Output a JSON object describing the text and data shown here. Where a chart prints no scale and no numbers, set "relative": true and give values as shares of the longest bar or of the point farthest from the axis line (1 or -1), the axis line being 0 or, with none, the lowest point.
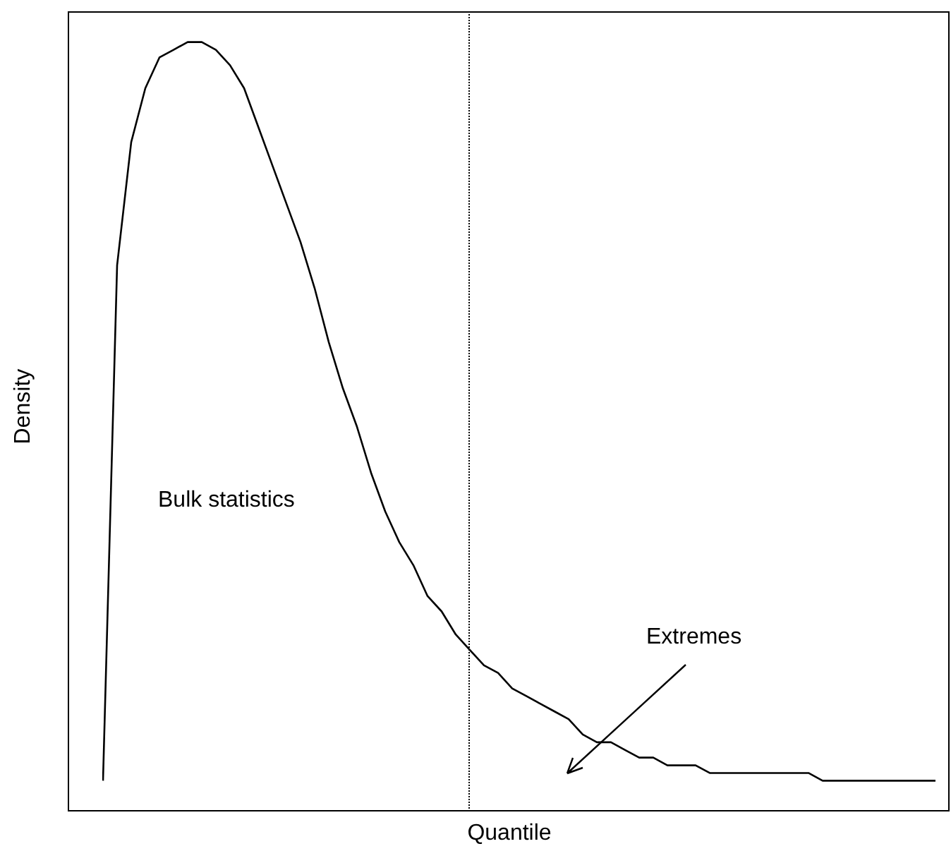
{
  "chart_data": {
    "type": "line",
    "relative": true,
    "xlabel": "Quantile",
    "ylabel": "Density",
    "legend": false,
    "marker": "none",
    "line_style": "solid",
    "categories": [
      null,
      null,
      null,
      null,
      null,
      null,
      null,
      null,
      null,
      null,
      null,
      null,
      null,
      null,
      null,
      null,
      null,
      null,
      null,
      null,
      null,
      null,
      null,
      null,
      null,
      null,
      null,
      null,
      null,
      null,
      null,
      null,
      null,
      null,
      null,
      null,
      null,
      null,
      null,
      null,
      null,
      null,
      null,
      null,
      null,
      null,
      null,
      null,
      null,
      null,
      null,
      null,
      null,
      null,
      null,
      null,
      null,
      null,
      null,
      null
    ],
    "series": [
      {
        "color": "#000000",
        "values": [
          0.04,
          0.71,
          0.87,
          0.94,
          0.98,
          0.99,
          1,
          1,
          0.99,
          0.97,
          0.94,
          0.89,
          0.84,
          0.79,
          0.74,
          0.68,
          0.61,
          0.55,
          0.5,
          0.44,
          0.39,
          0.35,
          0.32,
          0.28,
          0.26,
          0.23,
          0.21,
          0.19,
          0.18,
          0.16,
          0.15,
          0.14,
          0.13,
          0.12,
          0.1,
          0.09,
          0.09,
          0.08,
          0.07,
          0.07,
          0.06,
          0.06,
          0.06,
          0.05,
          0.05,
          0.05,
          0.05,
          0.05,
          0.05,
          0.05,
          0.05,
          0.04,
          0.04,
          0.04,
          0.04,
          0.04,
          0.04,
          0.04,
          0.04,
          0.04
        ]
      }
    ],
    "annotations": [
      "Bulk statistics",
      "Extremes"
    ]
  }
}
